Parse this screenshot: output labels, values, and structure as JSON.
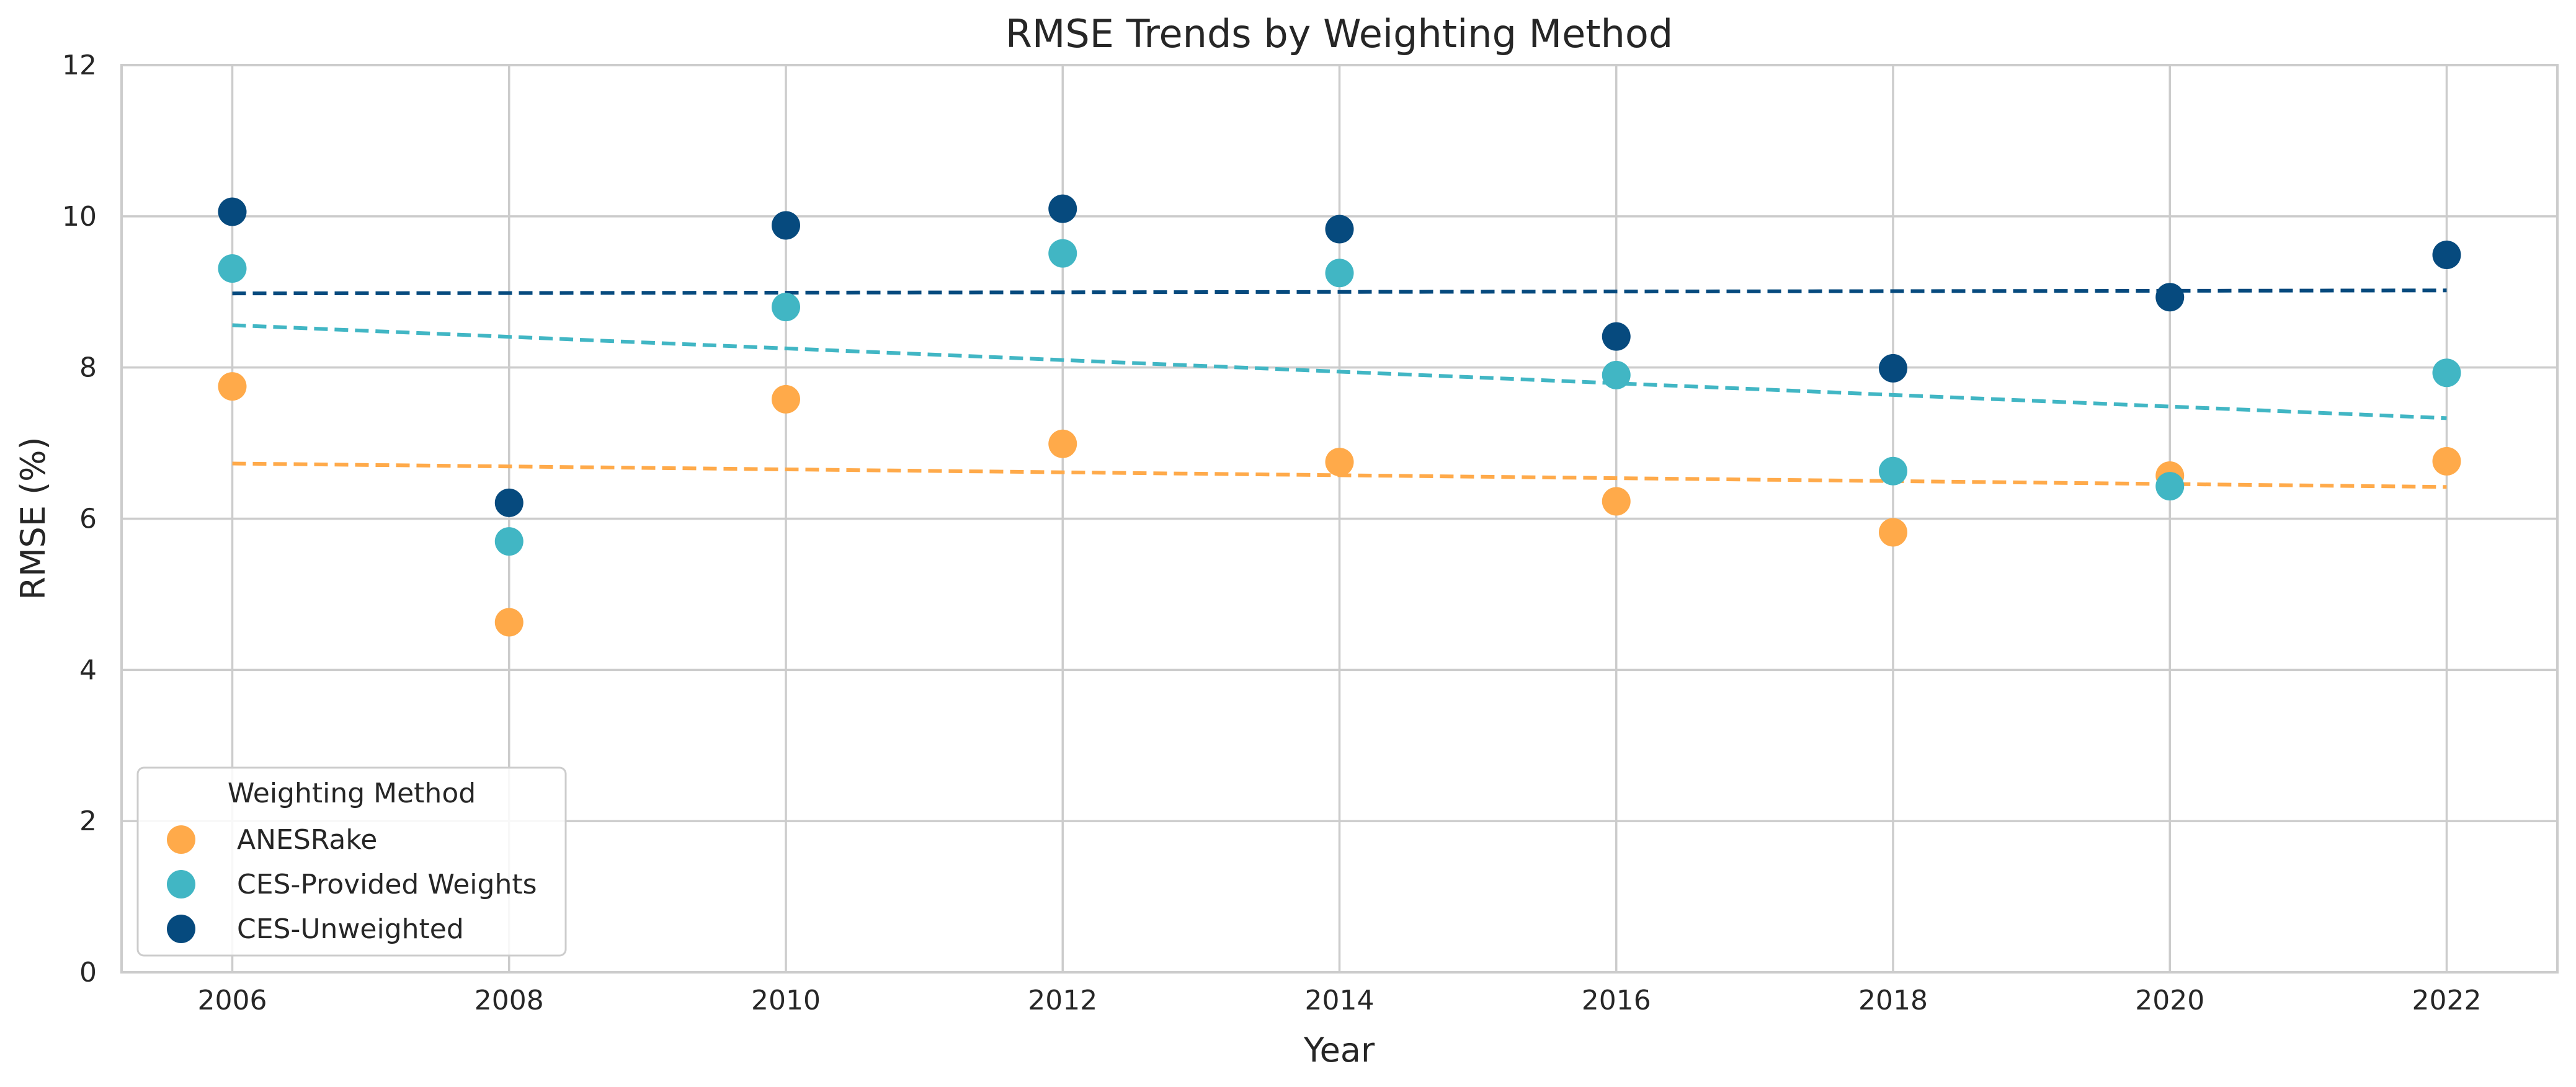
{
  "chart_data": {
    "type": "scatter",
    "title": "RMSE Trends by Weighting Method",
    "xlabel": "Year",
    "ylabel": "RMSE (%)",
    "xlim": [
      2005.2,
      2022.8
    ],
    "ylim": [
      0,
      12
    ],
    "x_ticks": [
      2006,
      2008,
      2010,
      2012,
      2014,
      2016,
      2018,
      2020,
      2022
    ],
    "y_ticks": [
      0,
      2,
      4,
      6,
      8,
      10,
      12
    ],
    "grid": true,
    "legend": {
      "title": "Weighting Method",
      "position": "lower-left"
    },
    "x": [
      2006,
      2008,
      2010,
      2012,
      2014,
      2016,
      2018,
      2020,
      2022
    ],
    "series": [
      {
        "name": "ANESRake",
        "color": "#FFAA4A",
        "values": [
          7.75,
          4.63,
          7.58,
          6.99,
          6.75,
          6.23,
          5.82,
          6.57,
          6.76
        ],
        "trend": [
          6.73,
          6.42
        ]
      },
      {
        "name": "CES-Provided Weights",
        "color": "#41B6C4",
        "values": [
          9.31,
          5.7,
          8.8,
          9.51,
          9.25,
          7.9,
          6.63,
          6.43,
          7.93
        ],
        "trend": [
          8.56,
          7.33
        ]
      },
      {
        "name": "CES-Unweighted",
        "color": "#064A7E",
        "values": [
          10.06,
          6.21,
          9.88,
          10.1,
          9.83,
          8.41,
          7.99,
          8.93,
          9.49
        ],
        "trend": [
          8.98,
          9.02
        ]
      }
    ]
  }
}
